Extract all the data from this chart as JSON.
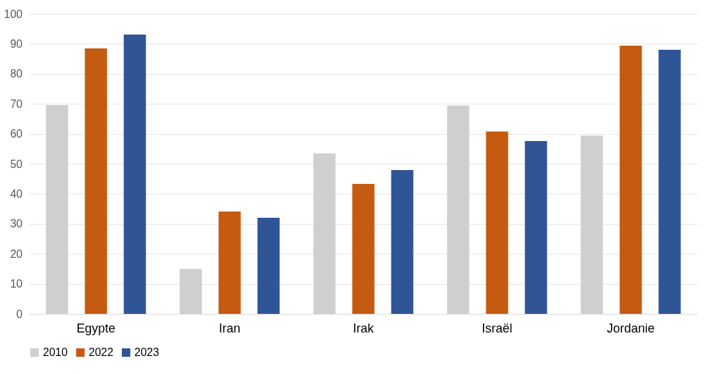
{
  "chart_data": {
    "type": "bar",
    "categories": [
      "Egypte",
      "Iran",
      "Irak",
      "Israël",
      "Jordanie"
    ],
    "series": [
      {
        "name": "2010",
        "color": "#d0cece",
        "values": [
          69.6,
          15.0,
          53.5,
          69.4,
          59.4
        ]
      },
      {
        "name": "2022",
        "color": "#c55a11",
        "values": [
          88.5,
          34.1,
          43.3,
          60.8,
          89.4
        ]
      },
      {
        "name": "2023",
        "color": "#2f5597",
        "values": [
          93.1,
          32.0,
          47.9,
          57.6,
          88.0
        ]
      }
    ],
    "ylim": [
      0,
      100
    ],
    "yticks": [
      0,
      10,
      20,
      30,
      40,
      50,
      60,
      70,
      80,
      90,
      100
    ],
    "grid": "y",
    "legend": "bottom"
  }
}
